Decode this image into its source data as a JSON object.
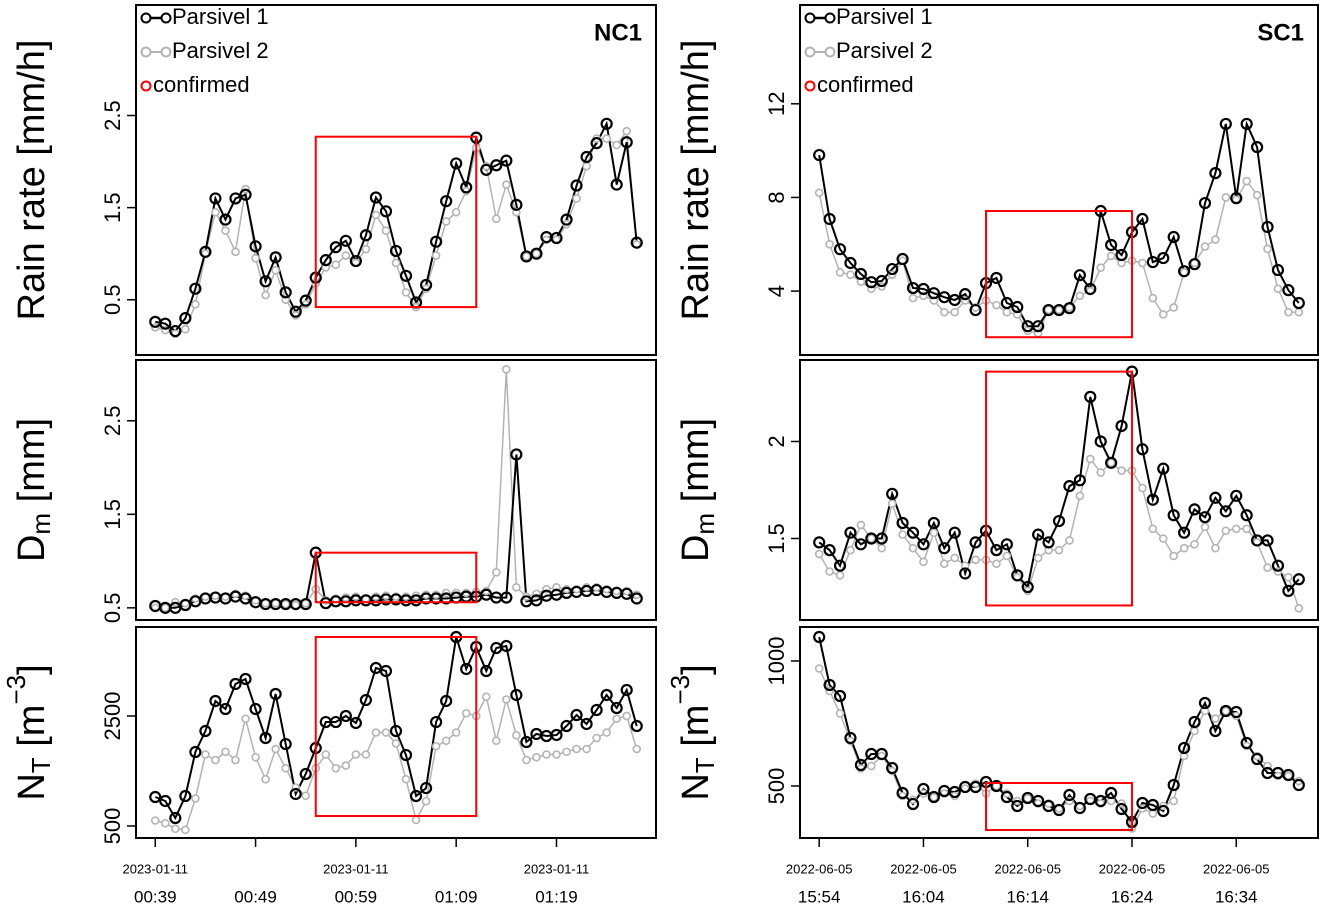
{
  "chart_data": [
    {
      "type": "line",
      "title": "NC1",
      "legend": "topleft",
      "x": [
        "00:39",
        "00:40",
        "00:41",
        "00:42",
        "00:43",
        "00:44",
        "00:45",
        "00:46",
        "00:47",
        "00:48",
        "00:49",
        "00:50",
        "00:51",
        "00:52",
        "00:53",
        "00:54",
        "00:55",
        "00:56",
        "00:57",
        "00:58",
        "00:59",
        "01:00",
        "01:01",
        "01:02",
        "01:03",
        "01:04",
        "01:05",
        "01:06",
        "01:07",
        "01:08",
        "01:09",
        "01:10",
        "01:11",
        "01:12",
        "01:13",
        "01:14",
        "01:15",
        "01:16",
        "01:17",
        "01:18",
        "01:19",
        "01:20",
        "01:21",
        "01:22",
        "01:23",
        "01:24",
        "01:25",
        "01:26",
        "01:27"
      ],
      "xticks": [
        "00:39",
        "00:49",
        "00:59",
        "01:09",
        "01:19"
      ],
      "xtick_dates": [
        "2023-01-11",
        null,
        "2023-01-11",
        null,
        "2023-01-11"
      ],
      "confirmed_label": "confirmed",
      "confirmed_color": "#ff0000",
      "series_names": [
        "Parsivel 1",
        "Parsivel 2"
      ],
      "series_colors": [
        "#000000",
        "#b3b3b3"
      ],
      "panels": [
        {
          "ylabel": [
            {
              "text": "Rain rate [mm/h]"
            }
          ],
          "ylim": [
            -0.1,
            3.7
          ],
          "yticks": [
            0.5,
            1.5,
            2.5
          ],
          "series": [
            {
              "values": [
                0.26,
                0.24,
                0.16,
                0.3,
                0.62,
                1.02,
                1.6,
                1.37,
                1.6,
                1.64,
                1.08,
                0.7,
                0.96,
                0.58,
                0.37,
                0.49,
                0.74,
                0.93,
                1.07,
                1.14,
                0.92,
                1.2,
                1.61,
                1.46,
                1.03,
                0.76,
                0.47,
                0.66,
                1.13,
                1.57,
                1.98,
                1.72,
                2.26,
                1.91,
                1.96,
                2.01,
                1.53,
                0.97,
                1.0,
                1.18,
                1.17,
                1.37,
                1.74,
                2.05,
                2.2,
                2.41,
                1.75,
                2.21,
                1.12
              ]
            },
            {
              "values": [
                0.2,
                0.17,
                0.13,
                0.18,
                0.45,
                1.0,
                1.45,
                1.25,
                1.02,
                1.7,
                0.95,
                0.55,
                0.82,
                0.5,
                0.33,
                0.45,
                0.68,
                0.85,
                0.88,
                0.98,
                0.9,
                1.05,
                1.42,
                1.25,
                0.9,
                0.58,
                0.42,
                0.62,
                0.98,
                1.35,
                1.45,
                1.68,
                2.15,
                1.95,
                1.38,
                1.75,
                1.45,
                0.97,
                1.0,
                1.15,
                1.15,
                1.32,
                1.6,
                1.95,
                2.25,
                2.25,
                2.18,
                2.33,
                1.1
              ]
            }
          ],
          "box": {
            "x": [
              "00:55",
              "01:11"
            ],
            "y": [
              0.42,
              2.27
            ]
          }
        },
        {
          "ylabel": [
            {
              "text": "D"
            },
            {
              "text": "m",
              "shift": "sub"
            },
            {
              "text": " [mm]"
            }
          ],
          "ylim": [
            0.37,
            3.15
          ],
          "yticks": [
            0.5,
            1.5,
            2.5
          ],
          "series": [
            {
              "values": [
                0.52,
                0.5,
                0.5,
                0.53,
                0.57,
                0.6,
                0.61,
                0.6,
                0.62,
                0.6,
                0.56,
                0.54,
                0.54,
                0.54,
                0.54,
                0.54,
                1.09,
                0.55,
                0.57,
                0.57,
                0.58,
                0.58,
                0.58,
                0.59,
                0.59,
                0.58,
                0.58,
                0.6,
                0.6,
                0.6,
                0.61,
                0.62,
                0.62,
                0.64,
                0.61,
                0.61,
                2.14,
                0.57,
                0.58,
                0.63,
                0.64,
                0.66,
                0.67,
                0.68,
                0.69,
                0.67,
                0.66,
                0.65,
                0.6
              ]
            },
            {
              "values": [
                0.5,
                0.5,
                0.56,
                0.55,
                0.6,
                0.62,
                0.63,
                0.62,
                0.65,
                0.63,
                0.58,
                0.55,
                0.55,
                0.54,
                0.53,
                0.55,
                0.7,
                0.58,
                0.6,
                0.61,
                0.62,
                0.6,
                0.62,
                0.63,
                0.62,
                0.62,
                0.63,
                0.64,
                0.64,
                0.66,
                0.66,
                0.66,
                0.67,
                0.68,
                0.88,
                3.05,
                0.72,
                0.62,
                0.65,
                0.7,
                0.72,
                0.7,
                0.7,
                0.72,
                0.72,
                0.7,
                0.68,
                0.68,
                0.64
              ]
            }
          ],
          "box": {
            "x": [
              "00:55",
              "01:11"
            ],
            "y": [
              0.56,
              1.09
            ]
          }
        },
        {
          "ylabel": [
            {
              "text": "N"
            },
            {
              "text": "T",
              "shift": "sub"
            },
            {
              "text": " [m"
            },
            {
              "text": "−3",
              "shift": "super"
            },
            {
              "text": "]"
            }
          ],
          "ylim": [
            282,
            4118
          ],
          "yticks": [
            500,
            2500
          ],
          "series": [
            {
              "values": [
                1027,
                955,
                645,
                1045,
                1845,
                2227,
                2773,
                2627,
                3082,
                3173,
                2627,
                2100,
                2900,
                1990,
                1082,
                1445,
                1918,
                2390,
                2390,
                2500,
                2373,
                2790,
                3373,
                3318,
                2227,
                1790,
                1045,
                1190,
                2390,
                2773,
                3936,
                3355,
                3755,
                3318,
                3736,
                3773,
                2882,
                2027,
                2173,
                2136,
                2155,
                2318,
                2518,
                2355,
                2609,
                2882,
                2645,
                2973,
                2318
              ]
            },
            {
              "values": [
                600,
                550,
                450,
                430,
                1000,
                1800,
                1700,
                1850,
                1700,
                2450,
                1750,
                1350,
                1900,
                1550,
                1200,
                1050,
                1550,
                1800,
                1550,
                1600,
                1800,
                1800,
                2200,
                2200,
                2000,
                1350,
                610,
                950,
                1950,
                2050,
                2200,
                2550,
                2500,
                2850,
                2050,
                2800,
                2150,
                1700,
                1750,
                1800,
                1800,
                1850,
                1900,
                1900,
                2100,
                2200,
                2450,
                2500,
                1900
              ]
            }
          ],
          "box": {
            "x": [
              "00:55",
              "01:11"
            ],
            "y": [
              682,
              3936
            ]
          }
        }
      ]
    },
    {
      "type": "line",
      "title": "SC1",
      "legend": "topleft",
      "x": [
        "15:54",
        "15:55",
        "15:56",
        "15:57",
        "15:58",
        "15:59",
        "16:00",
        "16:01",
        "16:02",
        "16:03",
        "16:04",
        "16:05",
        "16:06",
        "16:07",
        "16:08",
        "16:09",
        "16:10",
        "16:11",
        "16:12",
        "16:13",
        "16:14",
        "16:15",
        "16:16",
        "16:17",
        "16:18",
        "16:19",
        "16:20",
        "16:21",
        "16:22",
        "16:23",
        "16:24",
        "16:25",
        "16:26",
        "16:27",
        "16:28",
        "16:29",
        "16:30",
        "16:31",
        "16:32",
        "16:33",
        "16:34",
        "16:35",
        "16:36",
        "16:37",
        "16:38",
        "16:39",
        "16:40"
      ],
      "xticks": [
        "15:54",
        "16:04",
        "16:14",
        "16:24",
        "16:34"
      ],
      "xtick_dates": [
        "2022-06-05",
        "2022-06-05",
        "2022-06-05",
        "2022-06-05",
        "2022-06-05"
      ],
      "confirmed_label": "confirmed",
      "confirmed_color": "#ff0000",
      "series_names": [
        "Parsivel 1",
        "Parsivel 2"
      ],
      "series_colors": [
        "#000000",
        "#b3b3b3"
      ],
      "panels": [
        {
          "ylabel": [
            {
              "text": "Rain rate [mm/h]"
            }
          ],
          "ylim": [
            1.27,
            16.22
          ],
          "yticks": [
            4,
            8,
            12
          ],
          "series": [
            {
              "values": [
                9.81,
                7.08,
                5.79,
                5.2,
                4.73,
                4.38,
                4.43,
                4.94,
                5.37,
                4.13,
                4.09,
                3.91,
                3.74,
                3.62,
                3.87,
                3.19,
                4.34,
                4.56,
                3.49,
                3.32,
                2.5,
                2.5,
                3.19,
                3.19,
                3.27,
                4.68,
                4.09,
                7.42,
                5.97,
                5.54,
                6.52,
                7.08,
                5.24,
                5.41,
                6.31,
                4.85,
                5.15,
                7.76,
                9.04,
                11.14,
                7.97,
                11.14,
                10.15,
                6.74,
                4.9,
                4.04,
                3.49
              ]
            },
            {
              "values": [
                8.2,
                6.0,
                4.8,
                4.7,
                4.4,
                4.1,
                4.2,
                4.7,
                5.3,
                3.7,
                3.8,
                3.6,
                3.1,
                3.1,
                3.6,
                3.3,
                3.6,
                3.4,
                3.1,
                3.0,
                2.3,
                2.2,
                3.2,
                3.2,
                3.3,
                3.8,
                4.0,
                5.0,
                5.5,
                5.2,
                5.3,
                5.2,
                3.7,
                3.0,
                3.3,
                4.8,
                5.2,
                5.9,
                6.2,
                8.0,
                7.9,
                8.7,
                8.1,
                5.8,
                4.1,
                3.1,
                3.1
              ]
            }
          ],
          "box": {
            "x": [
              "16:10",
              "16:24"
            ],
            "y": [
              2.03,
              7.42
            ]
          }
        },
        {
          "ylabel": [
            {
              "text": "D"
            },
            {
              "text": "m",
              "shift": "sub"
            },
            {
              "text": " [mm]"
            }
          ],
          "ylim": [
            1.08,
            2.42
          ],
          "yticks": [
            1.5,
            2
          ],
          "series": [
            {
              "values": [
                1.48,
                1.44,
                1.36,
                1.53,
                1.47,
                1.5,
                1.5,
                1.73,
                1.58,
                1.53,
                1.47,
                1.58,
                1.45,
                1.53,
                1.32,
                1.48,
                1.54,
                1.44,
                1.47,
                1.31,
                1.25,
                1.52,
                1.48,
                1.59,
                1.77,
                1.8,
                2.23,
                2.0,
                1.89,
                2.08,
                2.36,
                1.96,
                1.7,
                1.86,
                1.62,
                1.53,
                1.65,
                1.61,
                1.71,
                1.64,
                1.72,
                1.62,
                1.49,
                1.49,
                1.36,
                1.23,
                1.29
              ]
            },
            {
              "values": [
                1.42,
                1.33,
                1.31,
                1.44,
                1.57,
                1.5,
                1.45,
                1.68,
                1.52,
                1.45,
                1.38,
                1.53,
                1.37,
                1.4,
                1.36,
                1.39,
                1.39,
                1.37,
                1.41,
                1.3,
                1.23,
                1.4,
                1.44,
                1.44,
                1.49,
                1.72,
                1.91,
                1.84,
                1.89,
                1.85,
                1.85,
                1.76,
                1.55,
                1.5,
                1.41,
                1.45,
                1.47,
                1.56,
                1.45,
                1.54,
                1.55,
                1.55,
                1.48,
                1.35,
                1.33,
                1.3,
                1.14
              ]
            }
          ],
          "box": {
            "x": [
              "16:10",
              "16:24"
            ],
            "y": [
              1.155,
              2.36
            ]
          }
        },
        {
          "ylabel": [
            {
              "text": "N"
            },
            {
              "text": "T",
              "shift": "sub"
            },
            {
              "text": " [m"
            },
            {
              "text": "−3",
              "shift": "super"
            },
            {
              "text": "]"
            }
          ],
          "ylim": [
            292,
            1136
          ],
          "yticks": [
            500,
            1000
          ],
          "series": [
            {
              "values": [
                1096,
                904,
                860,
                692,
                584,
                628,
                628,
                572,
                472,
                428,
                488,
                456,
                480,
                476,
                496,
                496,
                516,
                500,
                456,
                420,
                452,
                440,
                420,
                404,
                464,
                412,
                448,
                440,
                472,
                408,
                356,
                432,
                424,
                400,
                504,
                652,
                756,
                832,
                720,
                800,
                796,
                672,
                608,
                552,
                552,
                544,
                504
              ]
            },
            {
              "values": [
                970,
                880,
                790,
                680,
                570,
                580,
                620,
                560,
                460,
                445,
                470,
                455,
                470,
                460,
                490,
                510,
                470,
                500,
                470,
                440,
                450,
                430,
                430,
                410,
                440,
                420,
                440,
                430,
                440,
                430,
                330,
                410,
                390,
                420,
                440,
                620,
                720,
                800,
                770,
                800,
                780,
                660,
                620,
                580,
                540,
                540,
                520
              ]
            }
          ],
          "box": {
            "x": [
              "16:10",
              "16:24"
            ],
            "y": [
              324,
              512
            ]
          }
        }
      ]
    }
  ]
}
